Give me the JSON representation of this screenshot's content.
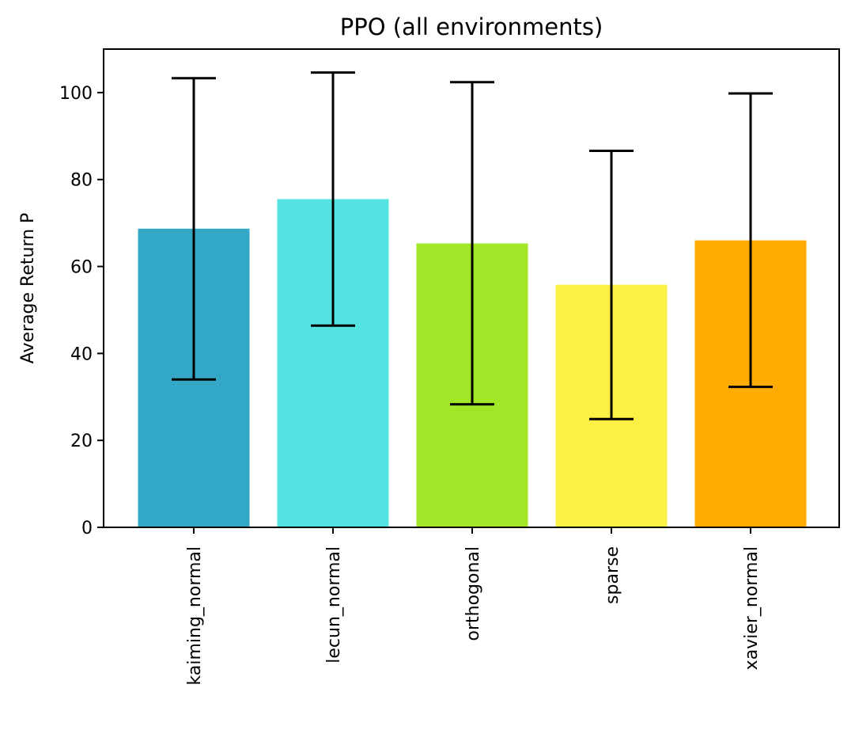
{
  "chart_data": {
    "type": "bar",
    "title": "PPO (all environments)",
    "xlabel": "",
    "ylabel": "Average Return P",
    "ylim": [
      0,
      110
    ],
    "yticks": [
      0,
      20,
      40,
      60,
      80,
      100
    ],
    "grid": false,
    "legend": "none",
    "categories": [
      "kaiming_normal",
      "lecun_normal",
      "orthogonal",
      "sparse",
      "xavier_normal"
    ],
    "values": [
      68.7,
      75.5,
      65.3,
      55.8,
      66.0
    ],
    "error_low": [
      34.0,
      46.4,
      28.3,
      24.9,
      32.3
    ],
    "error_high": [
      103.3,
      104.6,
      102.4,
      86.6,
      99.8
    ],
    "colors": [
      "#33a7c6",
      "#53e3e0",
      "#a1e627",
      "#fcf046",
      "#ffab02"
    ]
  }
}
